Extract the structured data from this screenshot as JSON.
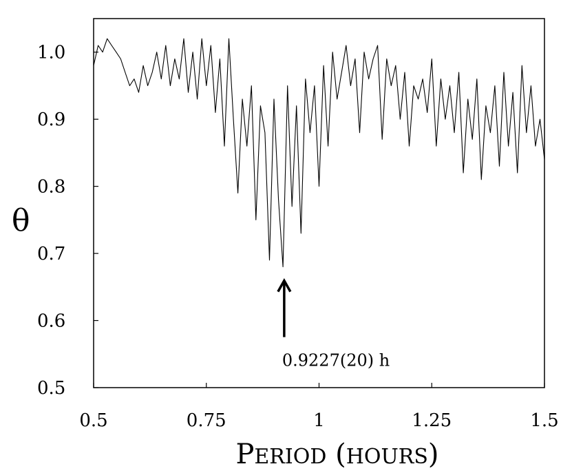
{
  "chart_data": {
    "type": "line",
    "title": "",
    "xlabel": "PERIOD (HOURS)",
    "xlabel_parts": [
      {
        "text": "P",
        "small": false
      },
      {
        "text": "ERIOD",
        "small": true
      },
      {
        "text": " (",
        "small": false
      },
      {
        "text": "HOURS",
        "small": true
      },
      {
        "text": ")",
        "small": false
      }
    ],
    "ylabel": "θ",
    "xlim": [
      0.5,
      1.5
    ],
    "ylim": [
      0.5,
      1.05
    ],
    "x_ticks": [
      0.5,
      0.75,
      1.0,
      1.25,
      1.5
    ],
    "x_tick_labels": [
      "0.5",
      "0.75",
      "1",
      "1.25",
      "1.5"
    ],
    "y_ticks": [
      0.5,
      0.6,
      0.7,
      0.8,
      0.9,
      1.0
    ],
    "y_tick_labels": [
      "0.5",
      "0.6",
      "0.7",
      "0.8",
      "0.9",
      "1.0"
    ],
    "grid": false,
    "legend": "none",
    "line_color": "#000000",
    "series": [
      {
        "x": [
          0.5,
          0.51,
          0.52,
          0.53,
          0.54,
          0.55,
          0.56,
          0.57,
          0.58,
          0.59,
          0.6,
          0.61,
          0.62,
          0.63,
          0.64,
          0.65,
          0.66,
          0.67,
          0.68,
          0.69,
          0.7,
          0.71,
          0.72,
          0.73,
          0.74,
          0.75,
          0.76,
          0.77,
          0.78,
          0.79,
          0.8,
          0.81,
          0.82,
          0.83,
          0.84,
          0.85,
          0.86,
          0.87,
          0.88,
          0.89,
          0.9,
          0.91,
          0.92,
          0.93,
          0.94,
          0.95,
          0.96,
          0.97,
          0.98,
          0.99,
          1.0,
          1.01,
          1.02,
          1.03,
          1.04,
          1.05,
          1.06,
          1.07,
          1.08,
          1.09,
          1.1,
          1.11,
          1.12,
          1.13,
          1.14,
          1.15,
          1.16,
          1.17,
          1.18,
          1.19,
          1.2,
          1.21,
          1.22,
          1.23,
          1.24,
          1.25,
          1.26,
          1.27,
          1.28,
          1.29,
          1.3,
          1.31,
          1.32,
          1.33,
          1.34,
          1.35,
          1.36,
          1.37,
          1.38,
          1.39,
          1.4,
          1.41,
          1.42,
          1.43,
          1.44,
          1.45,
          1.46,
          1.47,
          1.48,
          1.49,
          1.5
        ],
        "values": [
          0.98,
          1.01,
          1.0,
          1.02,
          1.01,
          1.0,
          0.99,
          0.97,
          0.95,
          0.96,
          0.94,
          0.98,
          0.95,
          0.97,
          1.0,
          0.96,
          1.01,
          0.95,
          0.99,
          0.96,
          1.02,
          0.94,
          1.0,
          0.93,
          1.02,
          0.95,
          1.01,
          0.91,
          0.99,
          0.86,
          1.02,
          0.9,
          0.79,
          0.93,
          0.86,
          0.95,
          0.75,
          0.92,
          0.88,
          0.69,
          0.93,
          0.78,
          0.68,
          0.95,
          0.77,
          0.92,
          0.73,
          0.96,
          0.88,
          0.95,
          0.8,
          0.98,
          0.86,
          1.0,
          0.93,
          0.97,
          1.01,
          0.95,
          0.99,
          0.88,
          1.0,
          0.96,
          0.99,
          1.01,
          0.87,
          0.99,
          0.95,
          0.98,
          0.9,
          0.97,
          0.86,
          0.95,
          0.93,
          0.96,
          0.91,
          0.99,
          0.86,
          0.96,
          0.9,
          0.95,
          0.88,
          0.97,
          0.82,
          0.93,
          0.87,
          0.96,
          0.81,
          0.92,
          0.88,
          0.95,
          0.83,
          0.97,
          0.86,
          0.94,
          0.82,
          0.98,
          0.88,
          0.95,
          0.86,
          0.9,
          0.84
        ]
      }
    ],
    "annotations": [
      {
        "text": "0.9227(20) h",
        "x": 0.9227,
        "y": 0.68,
        "arrow": "up"
      }
    ]
  }
}
